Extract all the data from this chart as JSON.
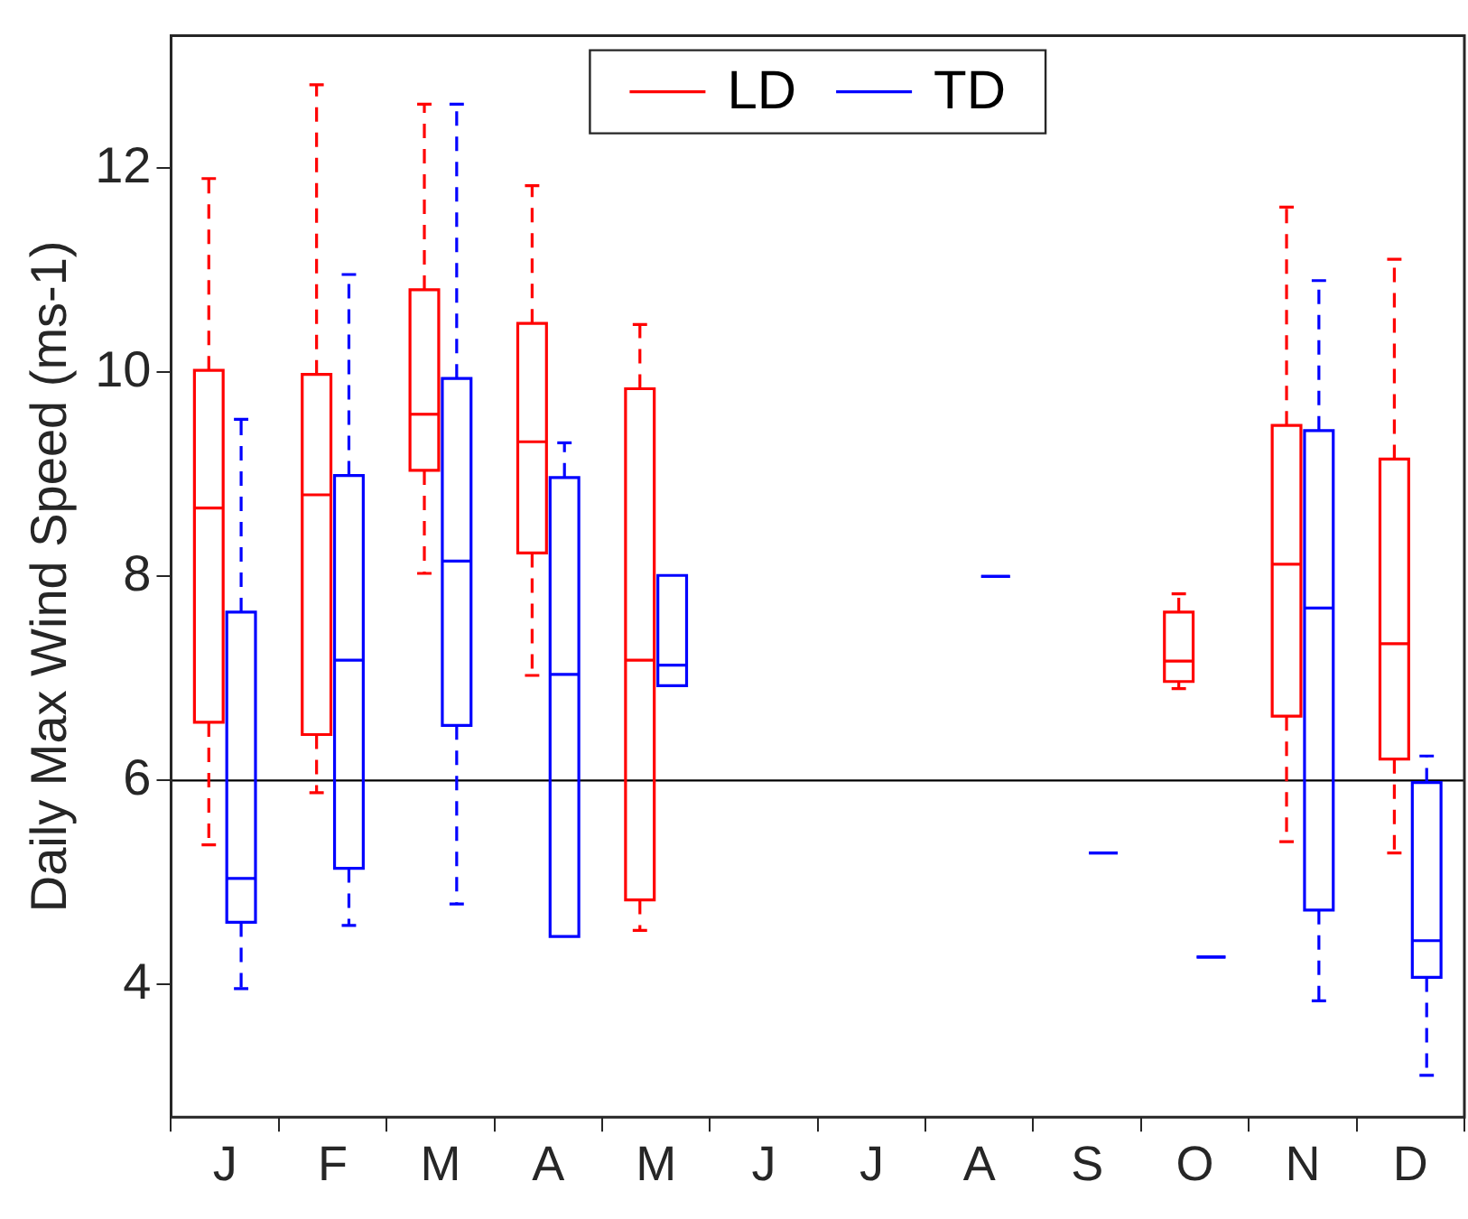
{
  "chart_data": {
    "type": "box",
    "ylabel": "Daily Max Wind Speed (ms-1)",
    "categories": [
      "J",
      "F",
      "M",
      "A",
      "M",
      "J",
      "J",
      "A",
      "S",
      "O",
      "N",
      "D"
    ],
    "ylim": [
      2.7,
      13.3
    ],
    "yticks": [
      4,
      6,
      8,
      10,
      12
    ],
    "legend": "top",
    "grid": false,
    "line_style": "dashed",
    "ref_lines": [
      {
        "axis": "y",
        "value": 6,
        "color": "#000000"
      }
    ],
    "series": [
      {
        "name": "LD",
        "color": "#ff0000",
        "boxes": [
          {
            "low": 5.37,
            "q1": 6.57,
            "median": 8.67,
            "q3": 10.02,
            "high": 11.9
          },
          {
            "low": 5.88,
            "q1": 6.45,
            "median": 8.8,
            "q3": 9.98,
            "high": 12.82
          },
          {
            "low": 8.03,
            "q1": 9.04,
            "median": 9.59,
            "q3": 10.81,
            "high": 12.63
          },
          {
            "low": 7.03,
            "q1": 8.23,
            "median": 9.32,
            "q3": 10.48,
            "high": 11.83
          },
          {
            "low": 4.53,
            "q1": 4.83,
            "median": 7.18,
            "q3": 9.84,
            "high": 10.47
          },
          null,
          null,
          null,
          null,
          {
            "low": 6.9,
            "q1": 6.97,
            "median": 7.17,
            "q3": 7.65,
            "high": 7.83
          },
          {
            "low": 5.4,
            "q1": 6.63,
            "median": 8.12,
            "q3": 9.48,
            "high": 11.62
          },
          {
            "low": 5.29,
            "q1": 6.21,
            "median": 7.34,
            "q3": 9.15,
            "high": 11.11
          }
        ]
      },
      {
        "name": "TD",
        "color": "#0000ff",
        "boxes": [
          {
            "low": 3.96,
            "q1": 4.61,
            "median": 5.04,
            "q3": 7.65,
            "high": 9.54
          },
          {
            "low": 4.58,
            "q1": 5.14,
            "median": 7.18,
            "q3": 8.99,
            "high": 10.96
          },
          {
            "low": 4.79,
            "q1": 6.54,
            "median": 8.15,
            "q3": 9.94,
            "high": 12.63
          },
          {
            "low": 4.47,
            "q1": 4.47,
            "median": 7.04,
            "q3": 8.97,
            "high": 9.31
          },
          {
            "low": 6.93,
            "q1": 6.93,
            "median": 7.13,
            "q3": 8.01,
            "high": 8.01
          },
          null,
          null,
          {
            "low": 8.0,
            "q1": 8.0,
            "median": 8.0,
            "q3": 8.0,
            "high": 8.0
          },
          {
            "low": 5.29,
            "q1": 5.29,
            "median": 5.29,
            "q3": 5.29,
            "high": 5.29
          },
          {
            "low": 4.27,
            "q1": 4.27,
            "median": 4.27,
            "q3": 4.27,
            "high": 4.27
          },
          {
            "low": 3.84,
            "q1": 4.73,
            "median": 7.69,
            "q3": 9.43,
            "high": 10.9
          },
          {
            "low": 3.11,
            "q1": 4.07,
            "median": 4.43,
            "q3": 5.98,
            "high": 6.24
          }
        ]
      }
    ]
  }
}
